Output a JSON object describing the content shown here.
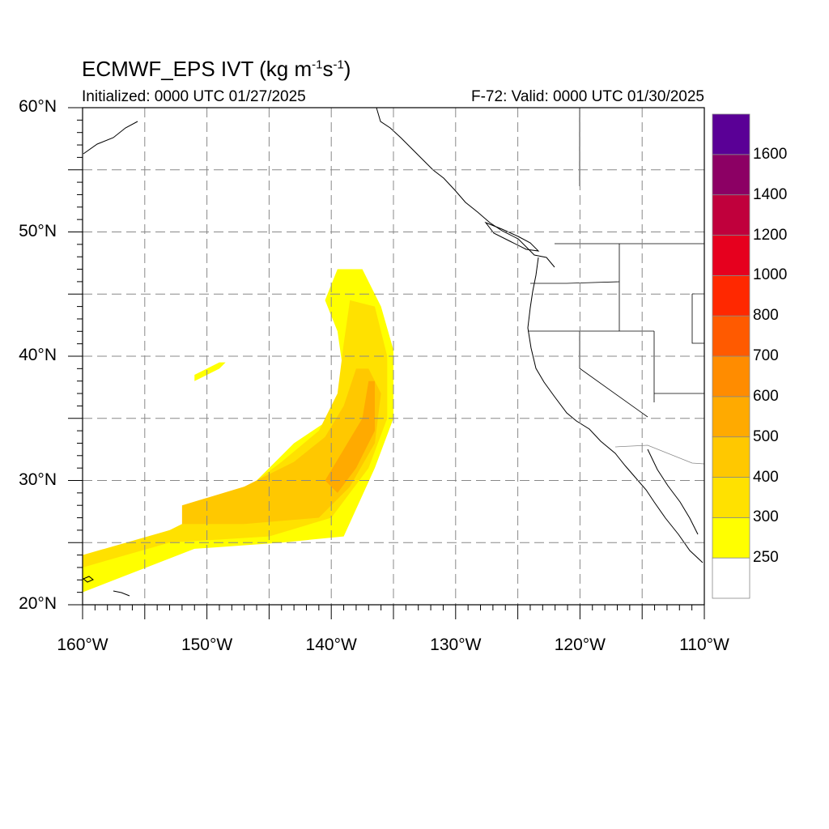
{
  "header": {
    "title_main": "ECMWF_EPS IVT (kg m",
    "title_sup1": "-1",
    "title_mid": "s",
    "title_sup2": "-1",
    "title_end": ")",
    "initialized": "Initialized: 0000 UTC 01/27/2025",
    "valid": "F-72: Valid: 0000 UTC 01/30/2025"
  },
  "axes": {
    "lat_labels": [
      "60°N",
      "50°N",
      "40°N",
      "30°N",
      "20°N"
    ],
    "lon_labels": [
      "160°W",
      "150°W",
      "140°W",
      "130°W",
      "120°W",
      "110°W"
    ],
    "lat_range": [
      20,
      60
    ],
    "lon_range": [
      -160,
      -110
    ],
    "grid": "dashed, 5 degree"
  },
  "colorbar": {
    "labels": [
      "1600",
      "1400",
      "1200",
      "1000",
      "800",
      "700",
      "600",
      "500",
      "400",
      "300",
      "250"
    ],
    "colors": [
      "#ffffff",
      "#ffff00",
      "#ffe100",
      "#ffc800",
      "#ffaa00",
      "#ff8c00",
      "#ff5a00",
      "#ff2800",
      "#e6001e",
      "#c0003c",
      "#8c0064",
      "#5a0096"
    ]
  },
  "ivt_field": {
    "description_levels": "IVT plume: 250-300 yellow, 300-400 gold, 400-500 amber, 500-600 orange",
    "plume_250": [
      [
        -160,
        23
      ],
      [
        -156,
        25
      ],
      [
        -150,
        27
      ],
      [
        -146,
        30
      ],
      [
        -143,
        33
      ],
      [
        -140,
        35
      ],
      [
        -139,
        38.5
      ],
      [
        -139.5,
        42
      ],
      [
        -140.5,
        44.5
      ],
      [
        -139.5,
        47
      ],
      [
        -137.5,
        47
      ],
      [
        -136,
        44
      ],
      [
        -135,
        40.5
      ],
      [
        -135,
        35
      ],
      [
        -136.5,
        31
      ],
      [
        -139,
        25.5
      ],
      [
        -144,
        25
      ],
      [
        -151,
        24.5
      ],
      [
        -160,
        21
      ]
    ],
    "plume_300": [
      [
        -160,
        24
      ],
      [
        -153,
        26
      ],
      [
        -148,
        28.5
      ],
      [
        -144,
        31.5
      ],
      [
        -141,
        34
      ],
      [
        -139.5,
        37
      ],
      [
        -139,
        41
      ],
      [
        -138.5,
        44.5
      ],
      [
        -136.5,
        44
      ],
      [
        -135.5,
        40
      ],
      [
        -135.5,
        35
      ],
      [
        -137,
        31
      ],
      [
        -140,
        27
      ],
      [
        -145,
        25.5
      ],
      [
        -153,
        25
      ],
      [
        -160,
        23
      ]
    ],
    "plume_400": [
      [
        -152,
        28
      ],
      [
        -147,
        29.5
      ],
      [
        -143,
        31.5
      ],
      [
        -140.5,
        33.5
      ],
      [
        -139,
        36
      ],
      [
        -138,
        39
      ],
      [
        -137,
        39
      ],
      [
        -136,
        37
      ],
      [
        -136.5,
        33
      ],
      [
        -138.5,
        29.5
      ],
      [
        -141,
        27
      ],
      [
        -147,
        26.5
      ],
      [
        -152,
        26.5
      ]
    ],
    "plume_500": [
      [
        -140.5,
        30
      ],
      [
        -139,
        32.5
      ],
      [
        -137.5,
        35
      ],
      [
        -137,
        38
      ],
      [
        -136.5,
        38
      ],
      [
        -136.5,
        34
      ],
      [
        -138,
        31
      ],
      [
        -139.5,
        29
      ]
    ],
    "islet": [
      [
        -151,
        38.5
      ],
      [
        -149,
        39.5
      ],
      [
        -148.5,
        39.5
      ],
      [
        -149,
        39
      ],
      [
        -151,
        38
      ]
    ]
  }
}
